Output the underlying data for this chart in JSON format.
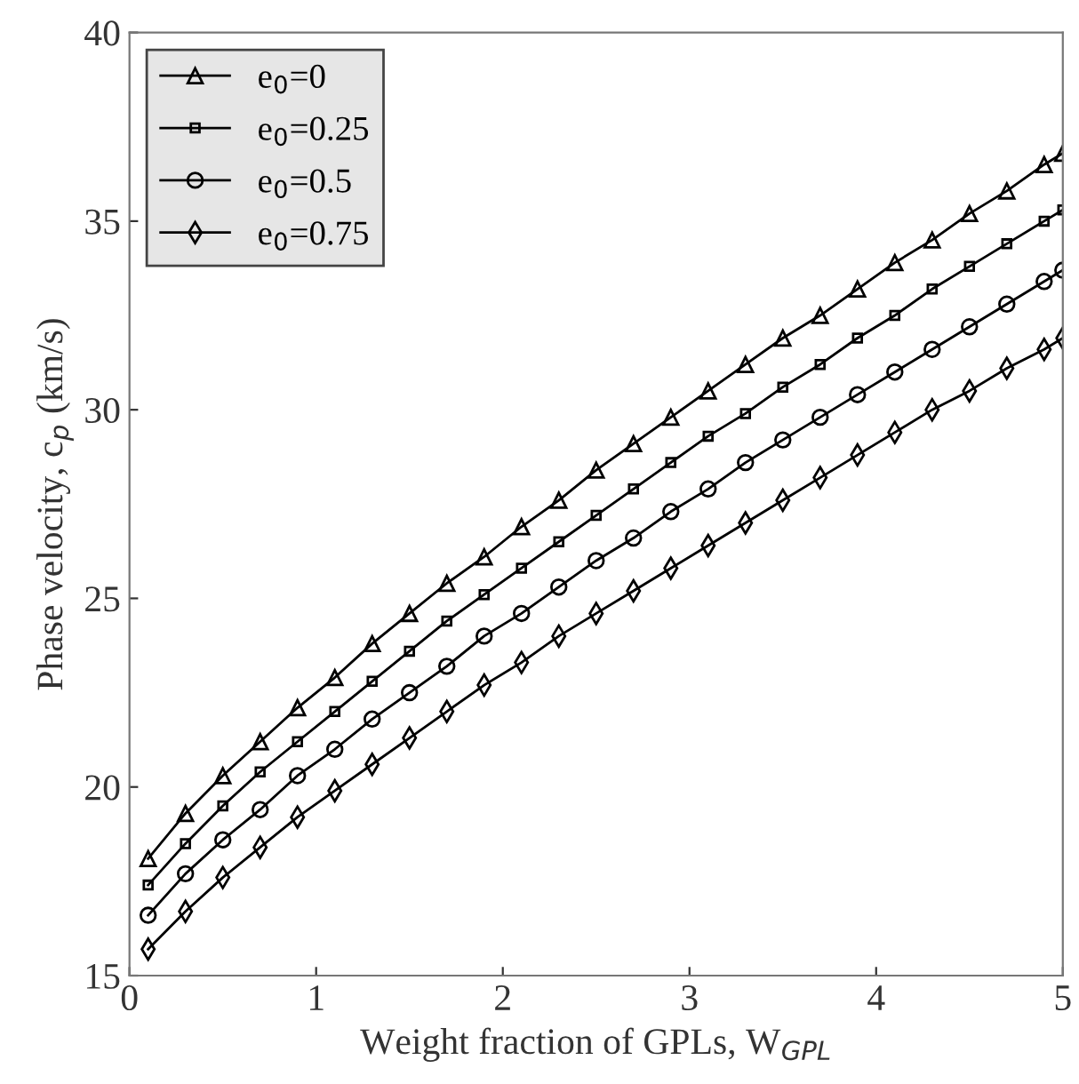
{
  "chart_data": {
    "type": "line",
    "xlabel": "Weight fraction of GPLs, W$_{GPL}$",
    "ylabel": "Phase velocity, c$_{p}$ (km/s)",
    "x": [
      0.1,
      0.3,
      0.5,
      0.7,
      0.9,
      1.1,
      1.3,
      1.5,
      1.7,
      1.9,
      2.1,
      2.3,
      2.5,
      2.7,
      2.9,
      3.1,
      3.3,
      3.5,
      3.7,
      3.9,
      4.1,
      4.3,
      4.5,
      4.7,
      4.9,
      5.0
    ],
    "series": [
      {
        "name": "e$_{0}$=0",
        "color": "#000000",
        "marker": "triangle",
        "values": [
          18.1,
          19.3,
          20.3,
          21.2,
          22.1,
          22.9,
          23.8,
          24.6,
          25.4,
          26.1,
          26.9,
          27.6,
          28.4,
          29.1,
          29.8,
          30.5,
          31.2,
          31.9,
          32.5,
          33.2,
          33.9,
          34.5,
          35.2,
          35.8,
          36.5,
          36.8
        ]
      },
      {
        "name": "e$_{0}$=0.25",
        "color": "#000000",
        "marker": "square",
        "values": [
          17.4,
          18.5,
          19.5,
          20.4,
          21.2,
          22.0,
          22.8,
          23.6,
          24.4,
          25.1,
          25.8,
          26.5,
          27.2,
          27.9,
          28.6,
          29.3,
          29.9,
          30.6,
          31.2,
          31.9,
          32.5,
          33.2,
          33.8,
          34.4,
          35.0,
          35.3
        ]
      },
      {
        "name": "e$_{0}$=0.5",
        "color": "#000000",
        "marker": "circle",
        "values": [
          16.6,
          17.7,
          18.6,
          19.4,
          20.3,
          21.0,
          21.8,
          22.5,
          23.2,
          24.0,
          24.6,
          25.3,
          26.0,
          26.6,
          27.3,
          27.9,
          28.6,
          29.2,
          29.8,
          30.4,
          31.0,
          31.6,
          32.2,
          32.8,
          33.4,
          33.7
        ]
      },
      {
        "name": "e$_{0}$=0.75",
        "color": "#000000",
        "marker": "diamond",
        "values": [
          15.7,
          16.7,
          17.6,
          18.4,
          19.2,
          19.9,
          20.6,
          21.3,
          22.0,
          22.7,
          23.3,
          24.0,
          24.6,
          25.2,
          25.8,
          26.4,
          27.0,
          27.6,
          28.2,
          28.8,
          29.4,
          30.0,
          30.5,
          31.1,
          31.6,
          31.9
        ]
      }
    ],
    "xlim": [
      0,
      5
    ],
    "ylim": [
      15,
      40
    ],
    "xticks": [
      0,
      1,
      2,
      3,
      4,
      5
    ],
    "yticks": [
      15,
      20,
      25,
      30,
      35,
      40
    ],
    "grid": false,
    "legend": "top left",
    "line_style": "solid"
  }
}
